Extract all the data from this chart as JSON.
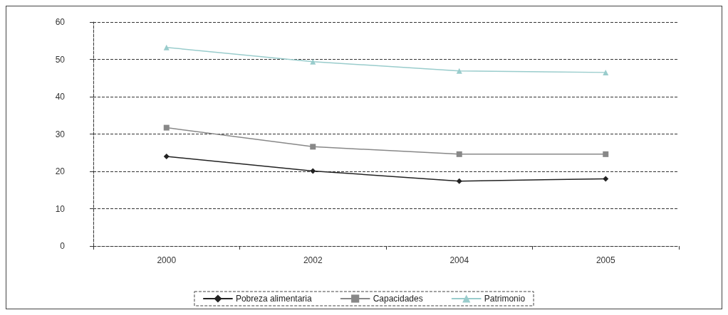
{
  "chart_data": {
    "type": "line",
    "categories": [
      "2000",
      "2002",
      "2004",
      "2005"
    ],
    "series": [
      {
        "name": "Pobreza alimentaria",
        "color": "#222222",
        "marker": "diamond",
        "values": [
          24.0,
          20.1,
          17.4,
          18.0
        ]
      },
      {
        "name": "Capacidades",
        "color": "#888888",
        "marker": "square",
        "values": [
          31.7,
          26.6,
          24.6,
          24.6
        ]
      },
      {
        "name": "Patrimonio",
        "color": "#99cccc",
        "marker": "triangle",
        "values": [
          53.2,
          49.4,
          46.9,
          46.5
        ]
      }
    ],
    "ylim": [
      0,
      60
    ],
    "yticks": [
      0,
      10,
      20,
      30,
      40,
      50,
      60
    ],
    "grid": "y",
    "legend": "bottom"
  }
}
